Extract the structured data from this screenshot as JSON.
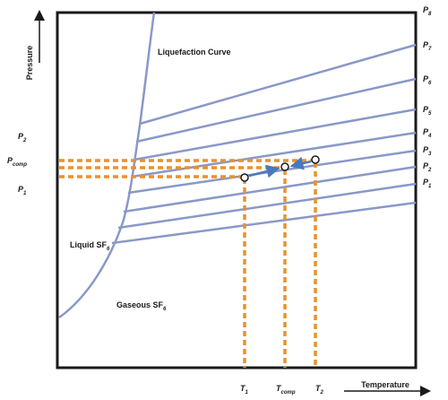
{
  "axes": {
    "x_label": "Temperature",
    "y_label": "Pressure"
  },
  "regions": {
    "liquefaction_curve": "Liquefaction Curve",
    "liquid": {
      "text": "Liquid SF",
      "sub": "6"
    },
    "gaseous": {
      "text": "Gaseous SF",
      "sub": "6"
    }
  },
  "left_labels": {
    "p2": {
      "text": "P",
      "sub": "2"
    },
    "p_comp": {
      "text": "P",
      "sub": "comp"
    },
    "p1": {
      "text": "P",
      "sub": "1"
    }
  },
  "isobar_labels": [
    {
      "text": "P",
      "sub": "8"
    },
    {
      "text": "P",
      "sub": "7"
    },
    {
      "text": "P",
      "sub": "6"
    },
    {
      "text": "P",
      "sub": "5"
    },
    {
      "text": "P",
      "sub": "4"
    },
    {
      "text": "P",
      "sub": "3"
    },
    {
      "text": "P",
      "sub": "2"
    },
    {
      "text": "P",
      "sub": "1"
    }
  ],
  "temperature_labels": {
    "t1": {
      "text": "T",
      "sub": "1"
    },
    "tcomp": {
      "text": "T",
      "sub": "comp"
    },
    "t2": {
      "text": "T",
      "sub": "2"
    }
  },
  "colors": {
    "curve": "#8a98c8",
    "dashed": "#e8922e",
    "arrow": "#4a78c0",
    "frame": "#1a1a1a"
  }
}
